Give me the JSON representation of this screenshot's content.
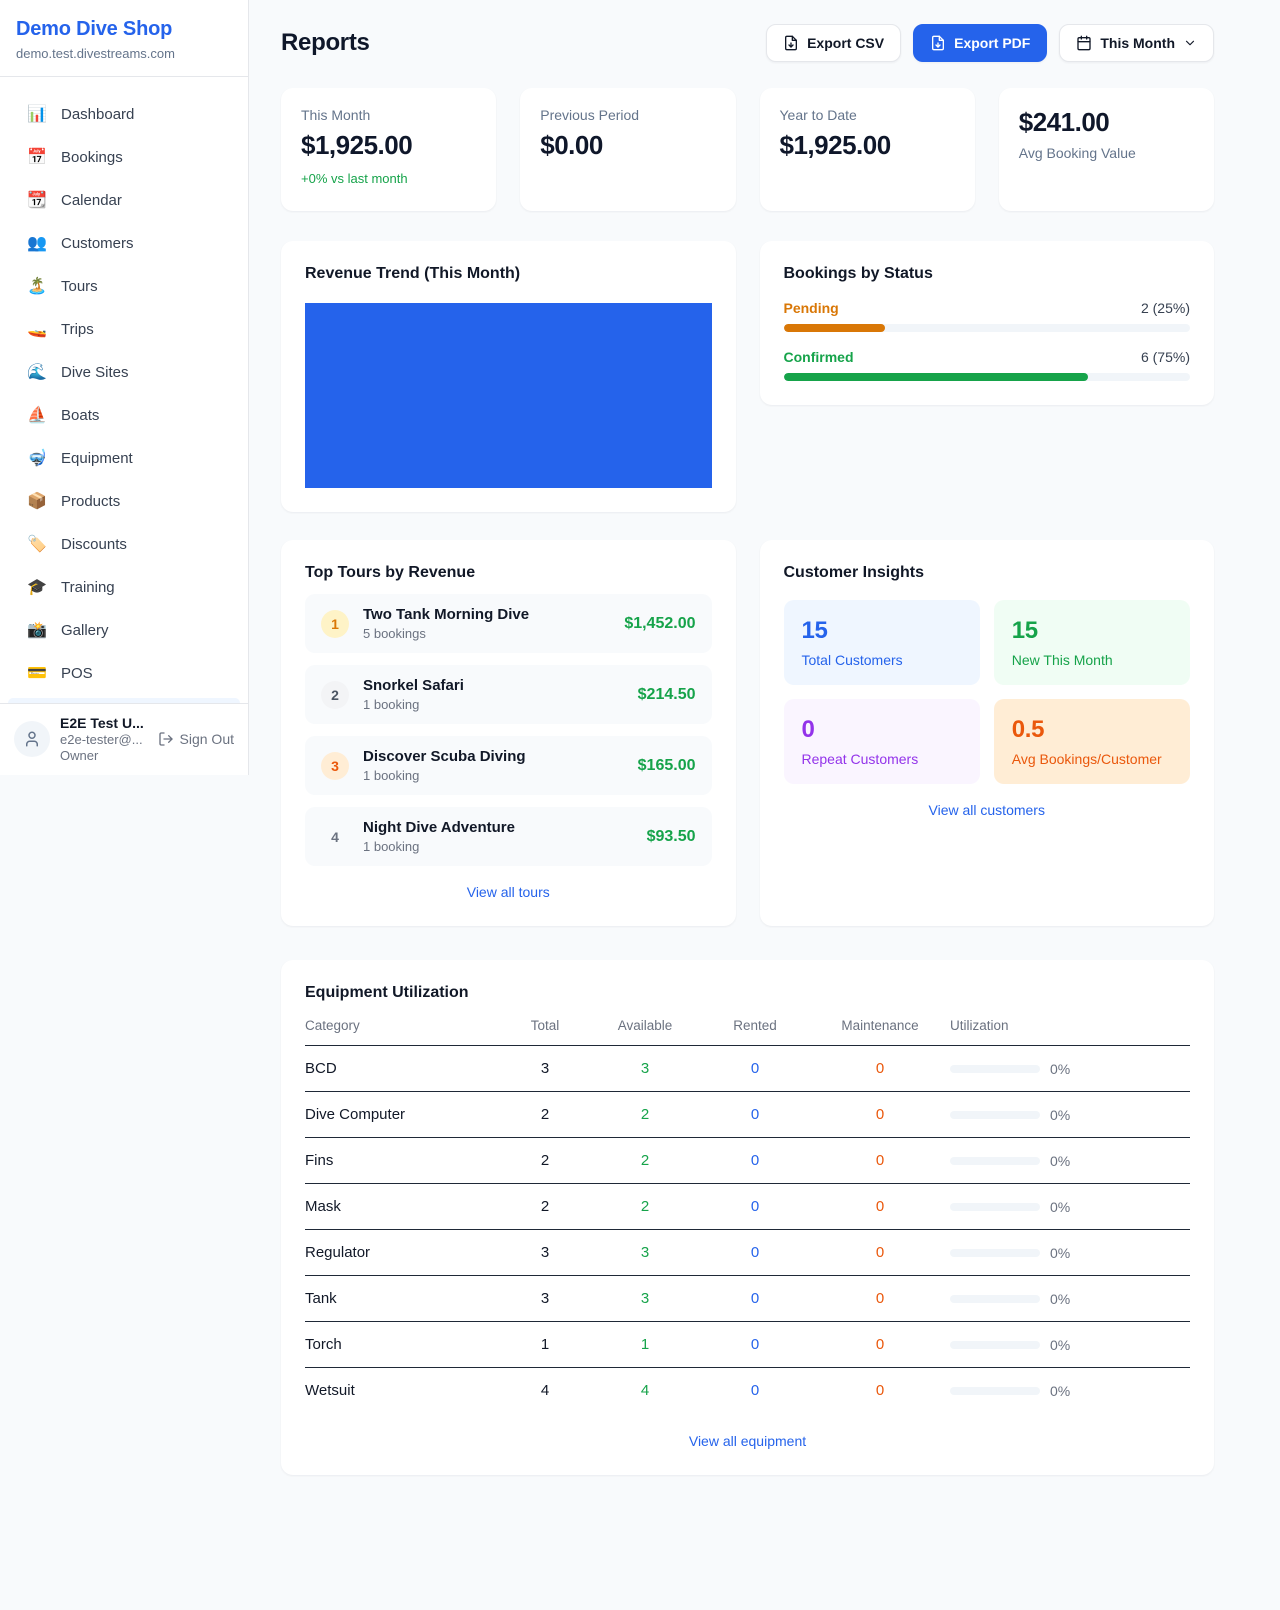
{
  "colors": {
    "accent_blue": "#2563eb",
    "green": "#16a34a",
    "amber": "#d97706",
    "orange": "#ea580c",
    "purple": "#9333ea"
  },
  "sidebar": {
    "title": "Demo Dive Shop",
    "domain": "demo.test.divestreams.com",
    "items": [
      {
        "item_name": "sidebar-item-dashboard",
        "icon_name": "dashboard-icon",
        "icon": "📊",
        "label": "Dashboard"
      },
      {
        "item_name": "sidebar-item-bookings",
        "icon_name": "bookings-calendar-icon",
        "icon": "📅",
        "label": "Bookings"
      },
      {
        "item_name": "sidebar-item-calendar",
        "icon_name": "calendar-icon",
        "icon": "📆",
        "label": "Calendar"
      },
      {
        "item_name": "sidebar-item-customers",
        "icon_name": "customers-icon",
        "icon": "👥",
        "label": "Customers"
      },
      {
        "item_name": "sidebar-item-tours",
        "icon_name": "island-icon",
        "icon": "🏝️",
        "label": "Tours"
      },
      {
        "item_name": "sidebar-item-trips",
        "icon_name": "speedboat-icon",
        "icon": "🚤",
        "label": "Trips"
      },
      {
        "item_name": "sidebar-item-dive-sites",
        "icon_name": "wave-icon",
        "icon": "🌊",
        "label": "Dive Sites"
      },
      {
        "item_name": "sidebar-item-boats",
        "icon_name": "sailboat-icon",
        "icon": "⛵",
        "label": "Boats"
      },
      {
        "item_name": "sidebar-item-equipment",
        "icon_name": "diving-mask-icon",
        "icon": "🤿",
        "label": "Equipment"
      },
      {
        "item_name": "sidebar-item-products",
        "icon_name": "package-icon",
        "icon": "📦",
        "label": "Products"
      },
      {
        "item_name": "sidebar-item-discounts",
        "icon_name": "tag-icon",
        "icon": "🏷️",
        "label": "Discounts"
      },
      {
        "item_name": "sidebar-item-training",
        "icon_name": "graduation-cap-icon",
        "icon": "🎓",
        "label": "Training"
      },
      {
        "item_name": "sidebar-item-gallery",
        "icon_name": "camera-icon",
        "icon": "📸",
        "label": "Gallery"
      },
      {
        "item_name": "sidebar-item-pos",
        "icon_name": "credit-card-icon",
        "icon": "💳",
        "label": "POS"
      }
    ],
    "user": {
      "name": "E2E Test U...",
      "email": "e2e-tester@...",
      "role": "Owner",
      "sign_out": "Sign Out"
    }
  },
  "header": {
    "title": "Reports",
    "export_csv": "Export CSV",
    "export_pdf": "Export PDF",
    "period": "This Month"
  },
  "stats": {
    "this_month": {
      "label": "This Month",
      "value": "$1,925.00",
      "delta": "+0% vs last month"
    },
    "previous_period": {
      "label": "Previous Period",
      "value": "$0.00"
    },
    "year_to_date": {
      "label": "Year to Date",
      "value": "$1,925.00"
    },
    "avg_booking": {
      "label": "Avg Booking Value",
      "value": "$241.00"
    }
  },
  "revenue_trend": {
    "title": "Revenue Trend (This Month)",
    "bar_color": "#2563eb"
  },
  "chart_data": [
    {
      "type": "bar",
      "title": "Revenue Trend (This Month)",
      "categories": [
        "This Month"
      ],
      "values": [
        1925
      ],
      "ylabel": "",
      "xlabel": "",
      "legend": false,
      "note": "single solid blue bar filling entire plot area, no axes or ticks visible"
    },
    {
      "type": "bar",
      "title": "Bookings by Status",
      "orientation": "horizontal",
      "categories": [
        "Pending",
        "Confirmed"
      ],
      "values": [
        2,
        6
      ],
      "percent": [
        25,
        75
      ],
      "labels": [
        "2 (25%)",
        "6 (75%)"
      ],
      "colors": [
        "#d97706",
        "#16a34a"
      ]
    }
  ],
  "bookings_status": {
    "title": "Bookings by Status",
    "rows": [
      {
        "label": "Pending",
        "value": "2 (25%)",
        "pct": 25,
        "color": "#d97706"
      },
      {
        "label": "Confirmed",
        "value": "6 (75%)",
        "pct": 75,
        "color": "#16a34a"
      }
    ]
  },
  "top_tours": {
    "title": "Top Tours by Revenue",
    "rows": [
      {
        "rank": "1",
        "name": "Two Tank Morning Dive",
        "bookings": "5 bookings",
        "amount": "$1,452.00",
        "badge_bg": "#fef3c7",
        "badge_color": "#d97706"
      },
      {
        "rank": "2",
        "name": "Snorkel Safari",
        "bookings": "1 booking",
        "amount": "$214.50",
        "badge_bg": "#f3f4f6",
        "badge_color": "#4b5563"
      },
      {
        "rank": "3",
        "name": "Discover Scuba Diving",
        "bookings": "1 booking",
        "amount": "$165.00",
        "badge_bg": "#ffedd5",
        "badge_color": "#ea580c"
      },
      {
        "rank": "4",
        "name": "Night Dive Adventure",
        "bookings": "1 booking",
        "amount": "$93.50",
        "badge_bg": "transparent",
        "badge_color": "#6b7280"
      }
    ],
    "link": "View all tours"
  },
  "customer_insights": {
    "title": "Customer Insights",
    "tiles": [
      {
        "value": "15",
        "label": "Total Customers",
        "bg": "#eff6ff",
        "color": "#2563eb"
      },
      {
        "value": "15",
        "label": "New This Month",
        "bg": "#f0fdf4",
        "color": "#16a34a"
      },
      {
        "value": "0",
        "label": "Repeat Customers",
        "bg": "#faf5ff",
        "color": "#9333ea"
      },
      {
        "value": "0.5",
        "label": "Avg Bookings/Customer",
        "bg": "#ffedd5",
        "color": "#ea580c"
      }
    ],
    "link": "View all customers"
  },
  "equipment": {
    "title": "Equipment Utilization",
    "columns": {
      "category": "Category",
      "total": "Total",
      "available": "Available",
      "rented": "Rented",
      "maintenance": "Maintenance",
      "utilization": "Utilization"
    },
    "rows": [
      {
        "category": "BCD",
        "total": "3",
        "available": "3",
        "rented": "0",
        "maintenance": "0",
        "utilization": "0%",
        "pct": 0
      },
      {
        "category": "Dive Computer",
        "total": "2",
        "available": "2",
        "rented": "0",
        "maintenance": "0",
        "utilization": "0%",
        "pct": 0
      },
      {
        "category": "Fins",
        "total": "2",
        "available": "2",
        "rented": "0",
        "maintenance": "0",
        "utilization": "0%",
        "pct": 0
      },
      {
        "category": "Mask",
        "total": "2",
        "available": "2",
        "rented": "0",
        "maintenance": "0",
        "utilization": "0%",
        "pct": 0
      },
      {
        "category": "Regulator",
        "total": "3",
        "available": "3",
        "rented": "0",
        "maintenance": "0",
        "utilization": "0%",
        "pct": 0
      },
      {
        "category": "Tank",
        "total": "3",
        "available": "3",
        "rented": "0",
        "maintenance": "0",
        "utilization": "0%",
        "pct": 0
      },
      {
        "category": "Torch",
        "total": "1",
        "available": "1",
        "rented": "0",
        "maintenance": "0",
        "utilization": "0%",
        "pct": 0
      },
      {
        "category": "Wetsuit",
        "total": "4",
        "available": "4",
        "rented": "0",
        "maintenance": "0",
        "utilization": "0%",
        "pct": 0
      }
    ],
    "link": "View all equipment"
  }
}
